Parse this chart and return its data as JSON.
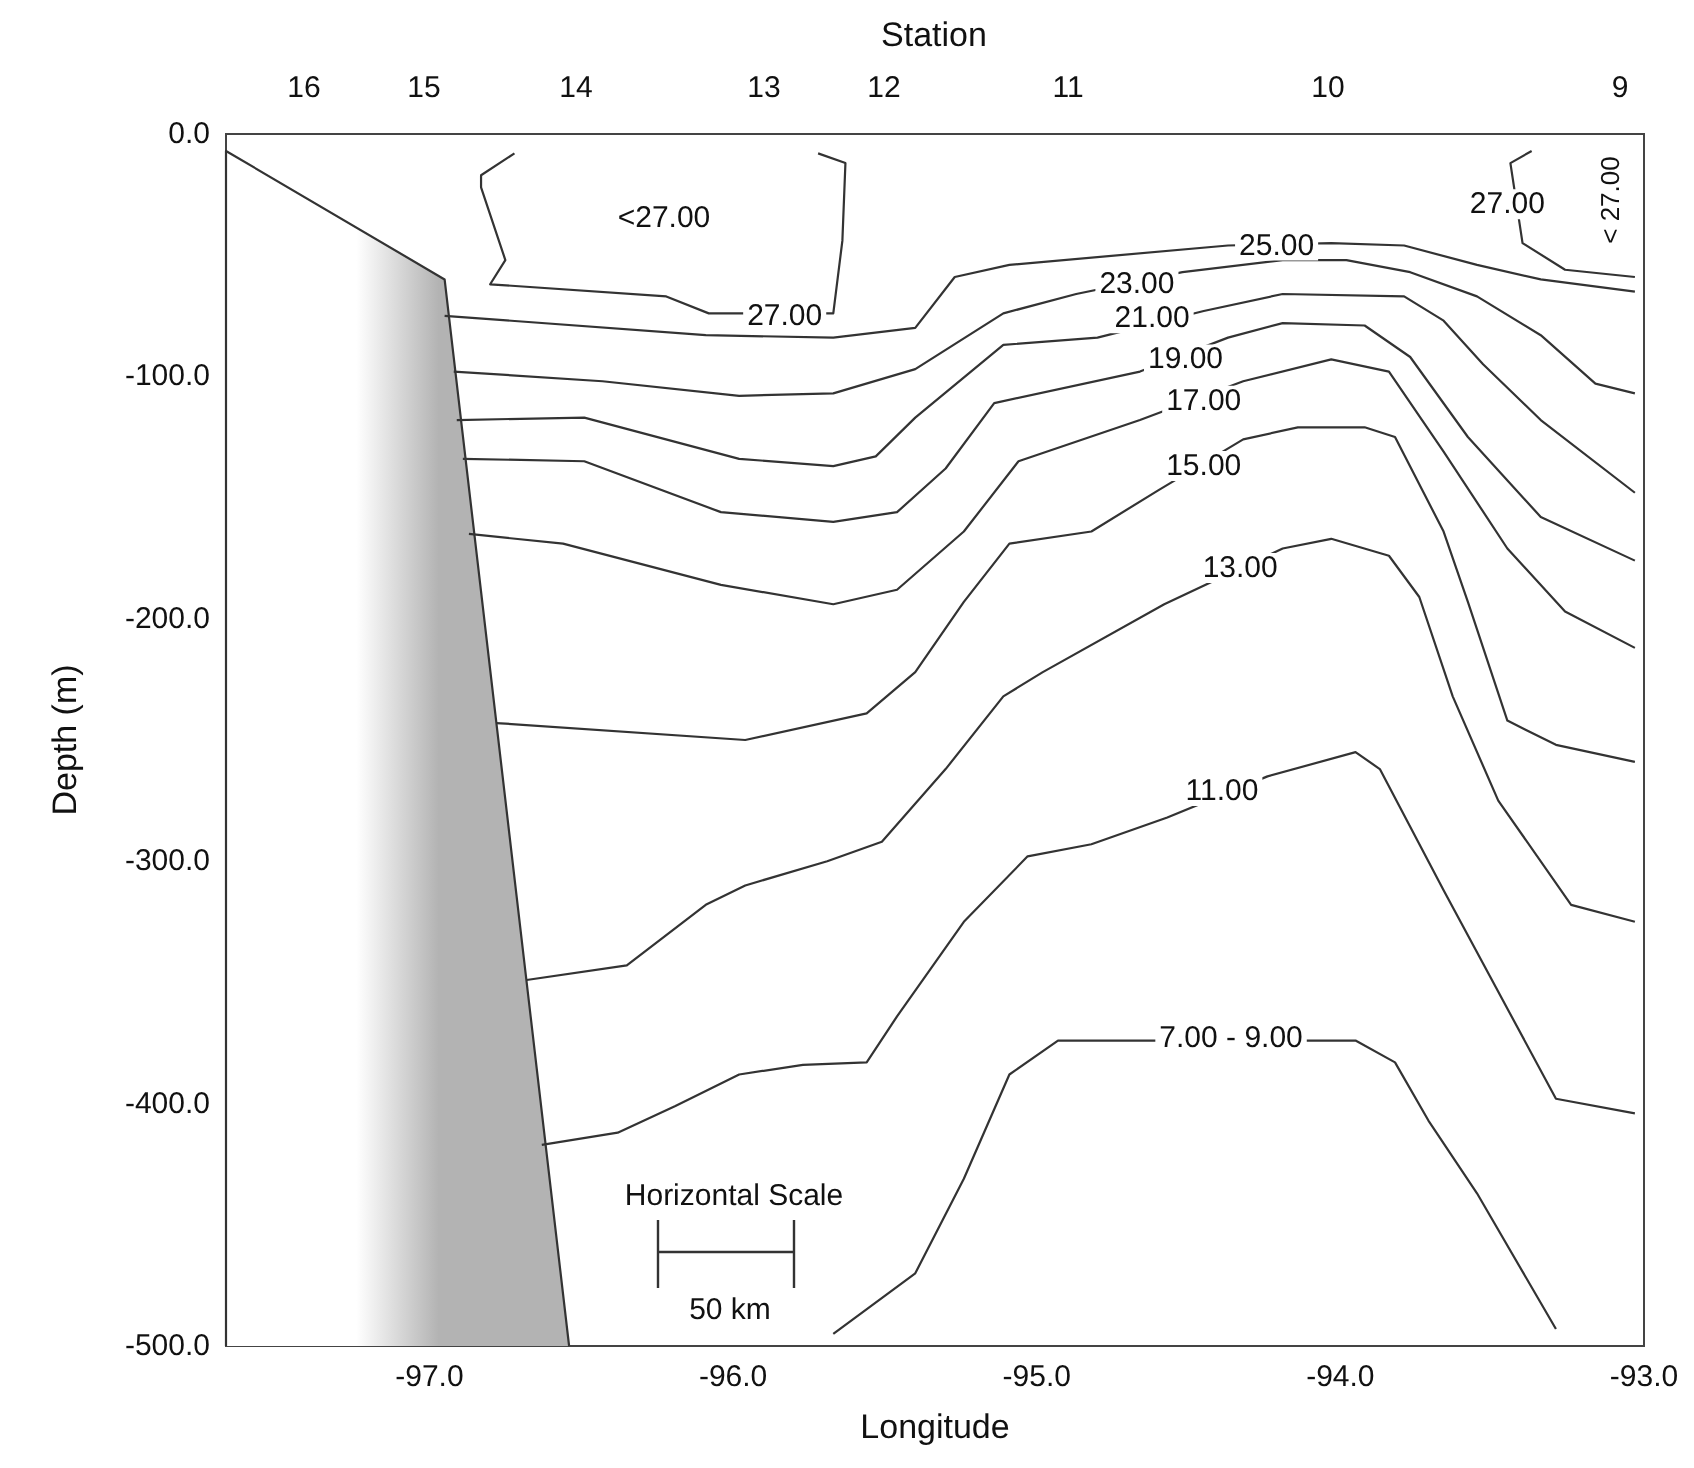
{
  "chart_data": {
    "type": "line",
    "xlabel": "Longitude",
    "ylabel": "Depth (m)",
    "x2label": "Station",
    "xlim": [
      -97.67,
      -93.0
    ],
    "xticks": [
      {
        "value": -97,
        "label": "-97.0"
      },
      {
        "value": -96,
        "label": "-96.0"
      },
      {
        "value": -95,
        "label": "-95.0"
      },
      {
        "value": -94,
        "label": "-94.0"
      },
      {
        "value": -93,
        "label": "-93.0"
      }
    ],
    "ylim": [
      -500,
      0
    ],
    "yticks": [
      {
        "value": -500,
        "label": "-500.0"
      },
      {
        "value": -400,
        "label": "-400.0"
      },
      {
        "value": -300,
        "label": "-300.0"
      },
      {
        "value": -200,
        "label": "-200.0"
      },
      {
        "value": -100,
        "label": "-100.0"
      },
      {
        "value": 0,
        "label": "0.0"
      }
    ],
    "marker": "none",
    "line_style": "solid",
    "series": [
      {
        "type": "area",
        "color": "#b3b3b3",
        "x": [
          -97.67,
          -97.67,
          -96.95,
          -96.54
        ],
        "values": [
          -500,
          -7,
          -60,
          -500
        ]
      },
      {
        "color": "#333333",
        "x": [
          -96.72,
          -96.83,
          -96.83,
          -96.75,
          -96.8,
          -96.22,
          -96.08,
          -95.67,
          -95.64,
          -95.63,
          -95.72
        ],
        "values": [
          -8,
          -17,
          -22,
          -52,
          -62,
          -67,
          -74,
          -74,
          -44,
          -12,
          -8
        ]
      },
      {
        "color": "#333333",
        "x": [
          -93.37,
          -93.44,
          -93.4,
          -93.26,
          -93.03
        ],
        "values": [
          -7,
          -12,
          -45,
          -56,
          -59
        ]
      },
      {
        "color": "#333333",
        "x": [
          -96.95,
          -96.09,
          -95.67,
          -95.4,
          -95.27,
          -95.09,
          -94.37,
          -94.03,
          -93.79,
          -93.55,
          -93.34,
          -93.03
        ],
        "values": [
          -75,
          -83,
          -84,
          -80,
          -59,
          -54,
          -46,
          -45,
          -46,
          -54,
          -60,
          -65
        ]
      },
      {
        "color": "#333333",
        "x": [
          -96.92,
          -96.43,
          -95.98,
          -95.67,
          -95.4,
          -95.11,
          -94.87,
          -94.52,
          -94.19,
          -93.98,
          -93.77,
          -93.55,
          -93.34,
          -93.16,
          -93.03
        ],
        "values": [
          -98,
          -102,
          -108,
          -107,
          -97,
          -74,
          -66,
          -57,
          -52,
          -52,
          -57,
          -67,
          -83,
          -103,
          -107
        ]
      },
      {
        "color": "#333333",
        "x": [
          -96.91,
          -96.49,
          -95.98,
          -95.67,
          -95.53,
          -95.4,
          -95.11,
          -94.8,
          -94.45,
          -94.19,
          -93.79,
          -93.66,
          -93.53,
          -93.34,
          -93.03
        ],
        "values": [
          -118,
          -117,
          -134,
          -137,
          -133,
          -117,
          -87,
          -84,
          -73,
          -66,
          -67,
          -77,
          -95,
          -118,
          -148
        ]
      },
      {
        "color": "#333333",
        "x": [
          -96.89,
          -96.49,
          -96.04,
          -95.67,
          -95.46,
          -95.3,
          -95.14,
          -94.66,
          -94.37,
          -94.19,
          -93.92,
          -93.77,
          -93.58,
          -93.34,
          -93.03
        ],
        "values": [
          -134,
          -135,
          -156,
          -160,
          -156,
          -138,
          -111,
          -98,
          -84,
          -78,
          -79,
          -92,
          -125,
          -158,
          -176
        ]
      },
      {
        "color": "#333333",
        "x": [
          -96.87,
          -96.56,
          -96.04,
          -95.67,
          -95.46,
          -95.24,
          -95.06,
          -94.66,
          -94.32,
          -94.03,
          -93.84,
          -93.66,
          -93.45,
          -93.26,
          -93.03
        ],
        "values": [
          -165,
          -169,
          -186,
          -194,
          -188,
          -164,
          -135,
          -118,
          -102,
          -93,
          -98,
          -131,
          -171,
          -197,
          -212
        ]
      },
      {
        "color": "#333333",
        "x": [
          -96.78,
          -95.96,
          -95.56,
          -95.4,
          -95.24,
          -95.09,
          -94.82,
          -94.6,
          -94.32,
          -94.14,
          -93.92,
          -93.82,
          -93.66,
          -93.58,
          -93.45,
          -93.29,
          -93.03
        ],
        "values": [
          -243,
          -250,
          -239,
          -222,
          -193,
          -169,
          -164,
          -147,
          -126,
          -121,
          -121,
          -125,
          -164,
          -193,
          -242,
          -252,
          -259
        ]
      },
      {
        "color": "#333333",
        "x": [
          -96.68,
          -96.35,
          -96.09,
          -95.96,
          -95.69,
          -95.51,
          -95.3,
          -95.11,
          -94.98,
          -94.58,
          -94.19,
          -94.03,
          -93.84,
          -93.74,
          -93.63,
          -93.48,
          -93.24,
          -93.03
        ],
        "values": [
          -349,
          -343,
          -318,
          -310,
          -300,
          -292,
          -262,
          -232,
          -222,
          -194,
          -171,
          -167,
          -174,
          -191,
          -232,
          -275,
          -318,
          -325
        ]
      },
      {
        "color": "#333333",
        "x": [
          -96.63,
          -96.38,
          -96.19,
          -95.98,
          -95.77,
          -95.56,
          -95.46,
          -95.24,
          -95.03,
          -94.82,
          -94.57,
          -94.24,
          -93.95,
          -93.87,
          -93.66,
          -93.29,
          -93.03
        ],
        "values": [
          -417,
          -412,
          -401,
          -388,
          -384,
          -383,
          -364,
          -325,
          -298,
          -293,
          -282,
          -265,
          -255,
          -262,
          -312,
          -398,
          -404
        ]
      },
      {
        "color": "#333333",
        "x": [
          -95.67,
          -95.4,
          -95.24,
          -95.09,
          -94.93,
          -94.72,
          -93.95,
          -93.82,
          -93.71,
          -93.55,
          -93.29
        ],
        "values": [
          -495,
          -470,
          -431,
          -388,
          -374,
          -374,
          -374,
          -383,
          -407,
          -437,
          -493
        ]
      }
    ],
    "annotations": [
      "<27.00",
      "< 27.00",
      {
        "text": "27.00",
        "x": -95.83,
        "y": -75
      },
      {
        "text": "25.00",
        "x": -94.21,
        "y": -46
      },
      {
        "text": "23.00",
        "x": -94.67,
        "y": -62
      },
      {
        "text": "21.00",
        "x": -94.62,
        "y": -76
      },
      {
        "text": "19.00",
        "x": -94.51,
        "y": -93
      },
      {
        "text": "17.00",
        "x": -94.45,
        "y": -110
      },
      {
        "text": "15.00",
        "x": -94.45,
        "y": -137
      },
      {
        "text": "13.00",
        "x": -94.33,
        "y": -179
      },
      {
        "text": "11.00",
        "x": -94.39,
        "y": -271
      },
      {
        "text": "7.00 - 9.00",
        "x": -94.36,
        "y": -373
      },
      {
        "text": "27.00",
        "x": -93.45,
        "y": -29
      },
      "Horizontal Scale",
      "50 km",
      "16",
      "15",
      "14",
      "13",
      "12",
      "11",
      "10",
      "9"
    ]
  }
}
